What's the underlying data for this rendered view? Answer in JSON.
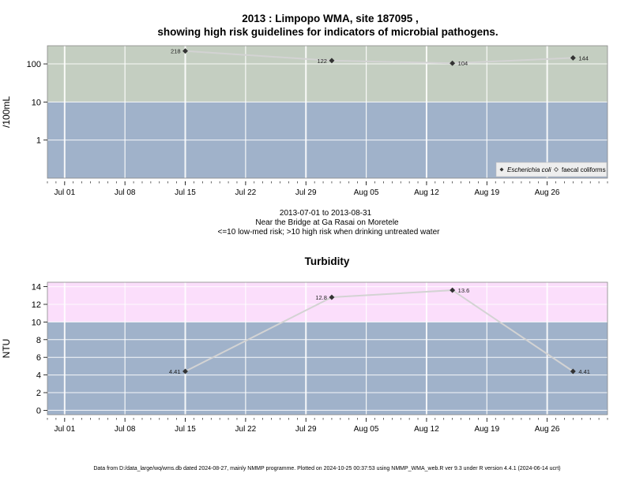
{
  "page": {
    "title_line1": "2013 : Limpopo WMA, site 187095 ,",
    "title_line2": "showing high risk guidelines for indicators of microbial pathogens.",
    "subtitle_line1": "2013-07-01 to 2013-08-31",
    "subtitle_line2": "Near the Bridge at Ga Rasai on Moretele",
    "subtitle_line3": "<=10 low-med risk; >10 high risk when drinking untreated water",
    "footer": "Data from D:/data_large/wq/wms.db dated 2024-08-27, mainly NMMP programme. Plotted on 2024-10-25 00:37:53 using NMMP_WMA_web.R ver 9.3 under R version 4.4.1 (2024-06-14 ucrt)"
  },
  "colors": {
    "low_band": "#a0b2ca",
    "high_band_micro": "#c4cec1",
    "high_band_turb": "#fbdefb",
    "grid": "#ffffff",
    "line": "#d3d3d3",
    "point": "#333333",
    "frame": "#888888"
  },
  "chart_data": [
    {
      "type": "line",
      "title": "",
      "ylabel": "/100mL",
      "yscale": "log",
      "ylim": [
        0.1,
        300
      ],
      "yticks": [
        1,
        10,
        100
      ],
      "ytick_labels": [
        "1",
        "10",
        "100"
      ],
      "x_dates": [
        "2013-07-15",
        "2013-08-01",
        "2013-08-15",
        "2013-08-29"
      ],
      "xlim": [
        "2013-06-29",
        "2013-09-02"
      ],
      "xticks": [
        "2013-07-01",
        "2013-07-08",
        "2013-07-15",
        "2013-07-22",
        "2013-07-29",
        "2013-08-05",
        "2013-08-12",
        "2013-08-19",
        "2013-08-26"
      ],
      "xtick_labels": [
        "Jul 01",
        "Jul 08",
        "Jul 15",
        "Jul 22",
        "Jul 29",
        "Aug 05",
        "Aug 12",
        "Aug 19",
        "Aug 26"
      ],
      "thresholds": [
        10
      ],
      "series": [
        {
          "name": "Escherichia coli",
          "marker": "diamond-filled",
          "values": [
            218,
            122,
            104,
            144
          ],
          "labels": [
            "218",
            "122",
            "104",
            "144"
          ],
          "label_sides": [
            "left",
            "left",
            "right",
            "right"
          ]
        }
      ],
      "legend": {
        "position": "bottom-right",
        "entries": [
          {
            "label": "Escherichia coli",
            "marker": "diamond-filled"
          },
          {
            "label": "faecal coliforms",
            "marker": "diamond-open"
          }
        ]
      },
      "grid": true
    },
    {
      "type": "line",
      "title": "Turbidity",
      "ylabel": "NTU",
      "yscale": "linear",
      "ylim": [
        -0.5,
        14.5
      ],
      "yticks": [
        0,
        2,
        4,
        6,
        8,
        10,
        12,
        14
      ],
      "ytick_labels": [
        "0",
        "2",
        "4",
        "6",
        "8",
        "10",
        "12",
        "14"
      ],
      "x_dates": [
        "2013-07-15",
        "2013-08-01",
        "2013-08-15",
        "2013-08-29"
      ],
      "xlim": [
        "2013-06-29",
        "2013-09-02"
      ],
      "xticks": [
        "2013-07-01",
        "2013-07-08",
        "2013-07-15",
        "2013-07-22",
        "2013-07-29",
        "2013-08-05",
        "2013-08-12",
        "2013-08-19",
        "2013-08-26"
      ],
      "xtick_labels": [
        "Jul 01",
        "Jul 08",
        "Jul 15",
        "Jul 22",
        "Jul 29",
        "Aug 05",
        "Aug 12",
        "Aug 19",
        "Aug 26"
      ],
      "thresholds": [
        10
      ],
      "series": [
        {
          "marker": "diamond-filled",
          "values": [
            4.41,
            12.8,
            13.6,
            4.41
          ],
          "labels": [
            "4.41",
            "12.8",
            "13.6",
            "4.41"
          ],
          "label_sides": [
            "left",
            "left",
            "right",
            "right"
          ]
        }
      ],
      "grid": true
    }
  ]
}
